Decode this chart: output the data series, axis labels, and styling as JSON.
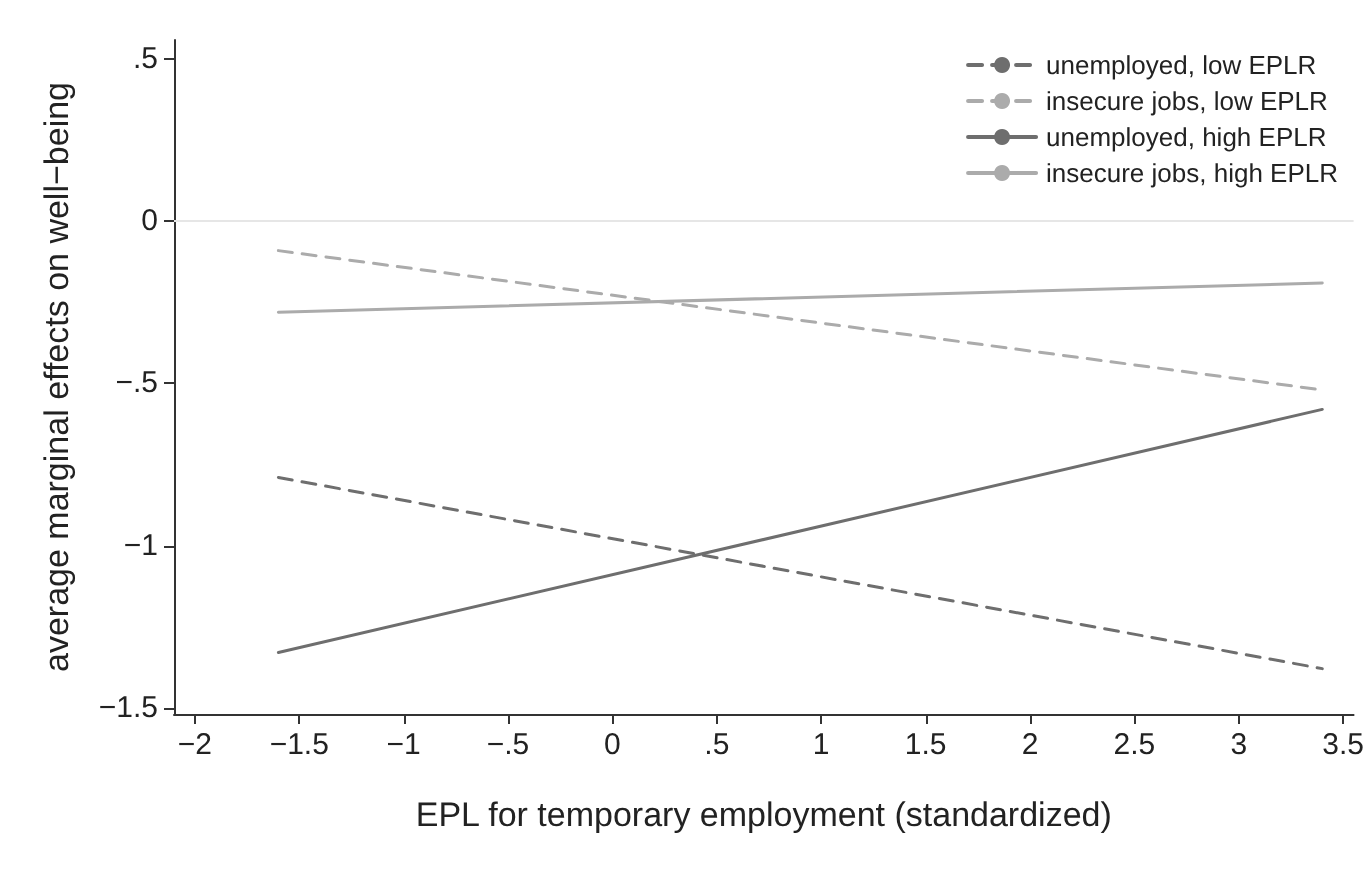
{
  "chart_data": {
    "type": "line",
    "xlabel": "EPL for temporary employment (standardized)",
    "ylabel": "average marginal effects on well−being",
    "x": [
      -1.6,
      3.4
    ],
    "series": [
      {
        "name": "unemployed, low EPLR",
        "color": "#6e6e6e",
        "line_style": "dashed",
        "values": [
          -0.79,
          -1.38
        ]
      },
      {
        "name": "insecure jobs, low EPLR",
        "color": "#ababab",
        "line_style": "dashed",
        "values": [
          -0.09,
          -0.52
        ]
      },
      {
        "name": "unemployed, high EPLR",
        "color": "#6e6e6e",
        "line_style": "solid",
        "values": [
          -1.33,
          -0.58
        ]
      },
      {
        "name": "insecure jobs, high EPLR",
        "color": "#ababab",
        "line_style": "solid",
        "values": [
          -0.28,
          -0.19
        ]
      }
    ],
    "xlim": [
      -2.1,
      3.55
    ],
    "xticks": [
      {
        "value": -2,
        "label": "−2"
      },
      {
        "value": -1.5,
        "label": "−1.5"
      },
      {
        "value": -1,
        "label": "−1"
      },
      {
        "value": -0.5,
        "label": "−.5"
      },
      0,
      {
        "value": 0.5,
        "label": ".5"
      },
      1,
      1.5,
      2,
      2.5,
      3,
      3.5
    ],
    "ylim": [
      -1.52,
      0.56
    ],
    "yticks": [
      {
        "value": -1.5,
        "label": "−1.5"
      },
      {
        "value": -1,
        "label": "−1"
      },
      {
        "value": -0.5,
        "label": "−.5"
      },
      0,
      {
        "value": 0.5,
        "label": ".5"
      }
    ],
    "ref_lines": [
      {
        "axis": "y",
        "value": 0,
        "color": "#e6e6e6"
      }
    ],
    "grid": false,
    "legend": "top right",
    "marker": "none"
  }
}
